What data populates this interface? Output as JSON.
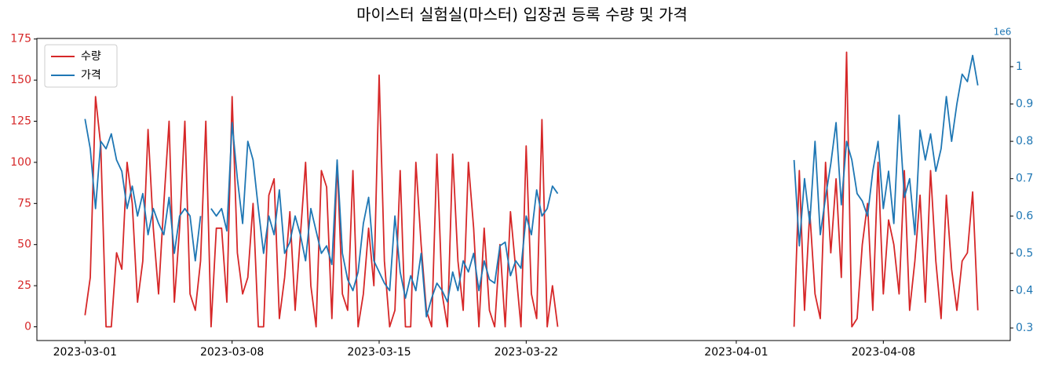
{
  "chart_data": {
    "type": "line",
    "title": "마이스터 실험실(마스터) 입장권 등록 수량 및 가격",
    "y2_offset_label": "1e6",
    "legend": "upper left",
    "x": [
      "2023-03-01 00:00",
      "2023-03-01 06:00",
      "2023-03-01 12:00",
      "2023-03-01 18:00",
      "2023-03-02 00:00",
      "2023-03-02 06:00",
      "2023-03-02 12:00",
      "2023-03-02 18:00",
      "2023-03-03 00:00",
      "2023-03-03 06:00",
      "2023-03-03 12:00",
      "2023-03-03 18:00",
      "2023-03-04 00:00",
      "2023-03-04 06:00",
      "2023-03-04 12:00",
      "2023-03-04 18:00",
      "2023-03-05 00:00",
      "2023-03-05 06:00",
      "2023-03-05 12:00",
      "2023-03-05 18:00",
      "2023-03-06 00:00",
      "2023-03-06 06:00",
      "2023-03-06 12:00",
      "2023-03-06 18:00",
      "2023-03-07 00:00",
      "2023-03-07 06:00",
      "2023-03-07 12:00",
      "2023-03-07 18:00",
      "2023-03-08 00:00",
      "2023-03-08 06:00",
      "2023-03-08 12:00",
      "2023-03-08 18:00",
      "2023-03-09 00:00",
      "2023-03-09 06:00",
      "2023-03-09 12:00",
      "2023-03-09 18:00",
      "2023-03-10 00:00",
      "2023-03-10 06:00",
      "2023-03-10 12:00",
      "2023-03-10 18:00",
      "2023-03-11 00:00",
      "2023-03-11 06:00",
      "2023-03-11 12:00",
      "2023-03-11 18:00",
      "2023-03-12 00:00",
      "2023-03-12 06:00",
      "2023-03-12 12:00",
      "2023-03-12 18:00",
      "2023-03-13 00:00",
      "2023-03-13 06:00",
      "2023-03-13 12:00",
      "2023-03-13 18:00",
      "2023-03-14 00:00",
      "2023-03-14 06:00",
      "2023-03-14 12:00",
      "2023-03-14 18:00",
      "2023-03-15 00:00",
      "2023-03-15 06:00",
      "2023-03-15 12:00",
      "2023-03-15 18:00",
      "2023-03-16 00:00",
      "2023-03-16 06:00",
      "2023-03-16 12:00",
      "2023-03-16 18:00",
      "2023-03-17 00:00",
      "2023-03-17 06:00",
      "2023-03-17 12:00",
      "2023-03-17 18:00",
      "2023-03-18 00:00",
      "2023-03-18 06:00",
      "2023-03-18 12:00",
      "2023-03-18 18:00",
      "2023-03-19 00:00",
      "2023-03-19 06:00",
      "2023-03-19 12:00",
      "2023-03-19 18:00",
      "2023-03-20 00:00",
      "2023-03-20 06:00",
      "2023-03-20 12:00",
      "2023-03-20 18:00",
      "2023-03-21 00:00",
      "2023-03-21 06:00",
      "2023-03-21 12:00",
      "2023-03-21 18:00",
      "2023-03-22 00:00",
      "2023-03-22 06:00",
      "2023-03-22 12:00",
      "2023-03-22 18:00",
      "2023-03-23 00:00",
      "2023-03-23 06:00",
      "2023-03-23 12:00",
      "2023-03-28 00:00",
      "2023-04-03 18:00",
      "2023-04-04 00:00",
      "2023-04-04 06:00",
      "2023-04-04 12:00",
      "2023-04-04 18:00",
      "2023-04-05 00:00",
      "2023-04-05 06:00",
      "2023-04-05 12:00",
      "2023-04-05 18:00",
      "2023-04-06 00:00",
      "2023-04-06 06:00",
      "2023-04-06 12:00",
      "2023-04-06 18:00",
      "2023-04-07 00:00",
      "2023-04-07 06:00",
      "2023-04-07 12:00",
      "2023-04-07 18:00",
      "2023-04-08 00:00",
      "2023-04-08 06:00",
      "2023-04-08 12:00",
      "2023-04-08 18:00",
      "2023-04-09 00:00",
      "2023-04-09 06:00",
      "2023-04-09 12:00",
      "2023-04-09 18:00",
      "2023-04-10 00:00",
      "2023-04-10 06:00",
      "2023-04-10 12:00",
      "2023-04-10 18:00",
      "2023-04-11 00:00",
      "2023-04-11 06:00",
      "2023-04-11 12:00",
      "2023-04-11 18:00",
      "2023-04-12 00:00",
      "2023-04-12 06:00",
      "2023-04-12 12:00"
    ],
    "series": [
      {
        "name": "수량",
        "color": "#d62728",
        "values": [
          7,
          30,
          140,
          110,
          0,
          0,
          45,
          35,
          100,
          75,
          15,
          40,
          120,
          60,
          20,
          75,
          125,
          15,
          60,
          125,
          20,
          10,
          40,
          125,
          0,
          60,
          60,
          15,
          140,
          45,
          20,
          30,
          75,
          0,
          0,
          80,
          90,
          5,
          30,
          70,
          10,
          55,
          100,
          25,
          0,
          95,
          85,
          5,
          100,
          20,
          10,
          95,
          0,
          20,
          60,
          25,
          153,
          40,
          0,
          10,
          95,
          0,
          0,
          100,
          50,
          10,
          0,
          105,
          20,
          0,
          105,
          40,
          10,
          100,
          60,
          0,
          60,
          10,
          0,
          50,
          0,
          70,
          35,
          0,
          110,
          20,
          5,
          126,
          0,
          25,
          0,
          null,
          0,
          95,
          10,
          70,
          20,
          5,
          100,
          45,
          90,
          30,
          167,
          0,
          5,
          50,
          75,
          10,
          100,
          20,
          65,
          50,
          20,
          95,
          10,
          40,
          80,
          15,
          95,
          40,
          5,
          80,
          35,
          10,
          40,
          45,
          82,
          10
        ]
      },
      {
        "name": "가격",
        "color": "#1f77b4",
        "axis": "y2",
        "values": [
          0.86,
          0.78,
          0.62,
          0.8,
          0.78,
          0.82,
          0.75,
          0.72,
          0.62,
          0.68,
          0.6,
          0.66,
          0.55,
          0.62,
          0.58,
          0.55,
          0.65,
          0.5,
          0.6,
          0.62,
          0.6,
          0.48,
          0.6,
          null,
          0.62,
          0.6,
          0.62,
          0.56,
          0.85,
          0.7,
          0.58,
          0.8,
          0.75,
          0.62,
          0.5,
          0.6,
          0.55,
          0.67,
          0.5,
          0.53,
          0.6,
          0.55,
          0.48,
          0.62,
          0.56,
          0.5,
          0.52,
          0.47,
          0.75,
          0.5,
          0.43,
          0.4,
          0.45,
          0.58,
          0.65,
          0.48,
          0.45,
          0.42,
          0.4,
          0.6,
          0.45,
          0.38,
          0.44,
          0.4,
          0.5,
          0.33,
          0.38,
          0.42,
          0.4,
          0.37,
          0.45,
          0.4,
          0.48,
          0.45,
          0.5,
          0.4,
          0.48,
          0.43,
          0.42,
          0.52,
          0.53,
          0.44,
          0.48,
          0.46,
          0.6,
          0.55,
          0.67,
          0.6,
          0.62,
          0.68,
          0.66,
          null,
          0.75,
          0.52,
          0.7,
          0.58,
          0.8,
          0.55,
          0.65,
          0.74,
          0.85,
          0.63,
          0.8,
          0.75,
          0.66,
          0.64,
          0.6,
          0.72,
          0.8,
          0.62,
          0.72,
          0.58,
          0.87,
          0.65,
          0.7,
          0.55,
          0.83,
          0.75,
          0.82,
          0.72,
          0.78,
          0.92,
          0.8,
          0.9,
          0.98,
          0.96,
          1.03,
          0.95
        ]
      }
    ],
    "xlim": [
      "2023-02-26 17:00",
      "2023-04-14 01:00"
    ],
    "xticks": [
      "2023-03-01",
      "2023-03-08",
      "2023-03-15",
      "2023-03-22",
      "2023-04-01",
      "2023-04-08"
    ],
    "ylim": [
      -8.35,
      175.35
    ],
    "yticks": [
      0,
      25,
      50,
      75,
      100,
      125,
      150,
      175
    ],
    "y2lim": [
      0.2664,
      1.0756
    ],
    "y2ticks": [
      0.3,
      0.4,
      0.5,
      0.6,
      0.7,
      0.8,
      0.9,
      1.0
    ]
  }
}
